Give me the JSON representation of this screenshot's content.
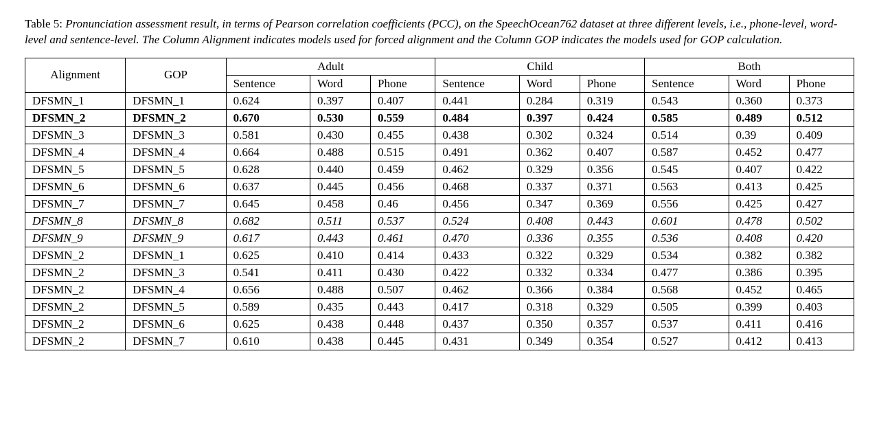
{
  "caption": {
    "label": "Table 5:",
    "text": "Pronunciation assessment result, in terms of Pearson correlation coefficients (PCC), on the SpeechOcean762 dataset at three different levels, i.e., phone-level, word-level and sentence-level. The Column Alignment indicates models used for forced alignment and the Column GOP indicates the models used for GOP calculation."
  },
  "table": {
    "header": {
      "col_labels": [
        "Alignment",
        "GOP"
      ],
      "groups": [
        "Adult",
        "Child",
        "Both"
      ],
      "sub_labels": [
        "Sentence",
        "Word",
        "Phone"
      ]
    },
    "rows": [
      {
        "style": "normal",
        "cells": [
          "DFSMN_1",
          "DFSMN_1",
          "0.624",
          "0.397",
          "0.407",
          "0.441",
          "0.284",
          "0.319",
          "0.543",
          "0.360",
          "0.373"
        ]
      },
      {
        "style": "bold",
        "cells": [
          "DFSMN_2",
          "DFSMN_2",
          "0.670",
          "0.530",
          "0.559",
          "0.484",
          "0.397",
          "0.424",
          "0.585",
          "0.489",
          "0.512"
        ]
      },
      {
        "style": "normal",
        "cells": [
          "DFSMN_3",
          "DFSMN_3",
          "0.581",
          "0.430",
          "0.455",
          "0.438",
          "0.302",
          "0.324",
          "0.514",
          "0.39",
          "0.409"
        ]
      },
      {
        "style": "normal",
        "cells": [
          "DFSMN_4",
          "DFSMN_4",
          "0.664",
          "0.488",
          "0.515",
          "0.491",
          "0.362",
          "0.407",
          "0.587",
          "0.452",
          "0.477"
        ]
      },
      {
        "style": "normal",
        "cells": [
          "DFSMN_5",
          "DFSMN_5",
          "0.628",
          "0.440",
          "0.459",
          "0.462",
          "0.329",
          "0.356",
          "0.545",
          "0.407",
          "0.422"
        ]
      },
      {
        "style": "normal",
        "cells": [
          "DFSMN_6",
          "DFSMN_6",
          "0.637",
          "0.445",
          "0.456",
          "0.468",
          "0.337",
          "0.371",
          "0.563",
          "0.413",
          "0.425"
        ]
      },
      {
        "style": "normal",
        "cells": [
          "DFSMN_7",
          "DFSMN_7",
          "0.645",
          "0.458",
          "0.46",
          "0.456",
          "0.347",
          "0.369",
          "0.556",
          "0.425",
          "0.427"
        ]
      },
      {
        "style": "italic",
        "cells": [
          "DFSMN_8",
          "DFSMN_8",
          "0.682",
          "0.511",
          "0.537",
          "0.524",
          "0.408",
          "0.443",
          "0.601",
          "0.478",
          "0.502"
        ]
      },
      {
        "style": "italic",
        "cells": [
          "DFSMN_9",
          "DFSMN_9",
          "0.617",
          "0.443",
          "0.461",
          "0.470",
          "0.336",
          "0.355",
          "0.536",
          "0.408",
          "0.420"
        ]
      },
      {
        "style": "normal",
        "cells": [
          "DFSMN_2",
          "DFSMN_1",
          "0.625",
          "0.410",
          "0.414",
          "0.433",
          "0.322",
          "0.329",
          "0.534",
          "0.382",
          "0.382"
        ]
      },
      {
        "style": "normal",
        "cells": [
          "DFSMN_2",
          "DFSMN_3",
          "0.541",
          "0.411",
          "0.430",
          "0.422",
          "0.332",
          "0.334",
          "0.477",
          "0.386",
          "0.395"
        ]
      },
      {
        "style": "normal",
        "cells": [
          "DFSMN_2",
          "DFSMN_4",
          "0.656",
          "0.488",
          "0.507",
          "0.462",
          "0.366",
          "0.384",
          "0.568",
          "0.452",
          "0.465"
        ]
      },
      {
        "style": "normal",
        "cells": [
          "DFSMN_2",
          "DFSMN_5",
          "0.589",
          "0.435",
          "0.443",
          "0.417",
          "0.318",
          "0.329",
          "0.505",
          "0.399",
          "0.403"
        ]
      },
      {
        "style": "normal",
        "cells": [
          "DFSMN_2",
          "DFSMN_6",
          "0.625",
          "0.438",
          "0.448",
          "0.437",
          "0.350",
          "0.357",
          "0.537",
          "0.411",
          "0.416"
        ]
      },
      {
        "style": "normal",
        "cells": [
          "DFSMN_2",
          "DFSMN_7",
          "0.610",
          "0.438",
          "0.445",
          "0.431",
          "0.349",
          "0.354",
          "0.527",
          "0.412",
          "0.413"
        ]
      }
    ]
  }
}
